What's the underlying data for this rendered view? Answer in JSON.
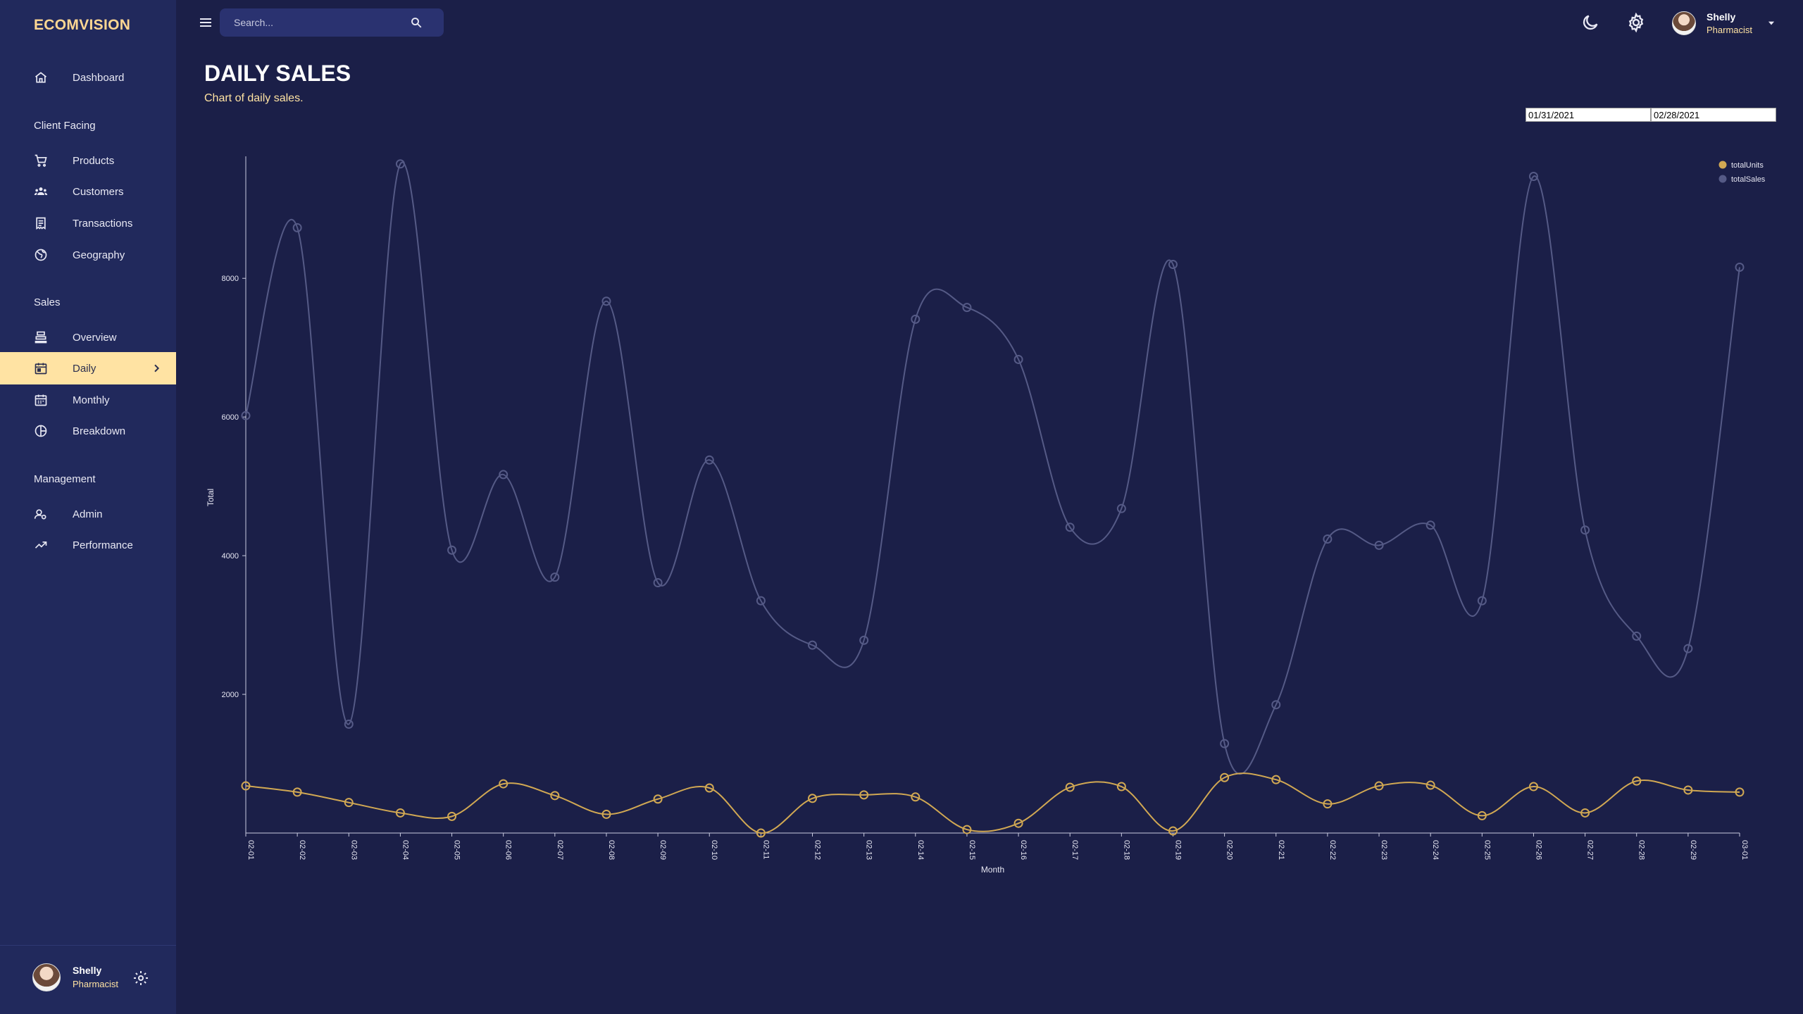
{
  "app": {
    "brand": "ECOMVISION"
  },
  "colors": {
    "background": "#1b1f48",
    "sidebar": "#21295c",
    "accent": "#ffe3a3",
    "sales_line": "#555a86",
    "units_line": "#d1a853"
  },
  "sidebar": {
    "dashboard": {
      "label": "Dashboard",
      "icon": "home-icon"
    },
    "section_client": "Client Facing",
    "products": {
      "label": "Products",
      "icon": "cart-icon"
    },
    "customers": {
      "label": "Customers",
      "icon": "groups-icon"
    },
    "transactions": {
      "label": "Transactions",
      "icon": "receipt-icon"
    },
    "geography": {
      "label": "Geography",
      "icon": "globe-icon"
    },
    "section_sales": "Sales",
    "overview": {
      "label": "Overview",
      "icon": "point-of-sale-icon"
    },
    "daily": {
      "label": "Daily",
      "icon": "calendar-today-icon"
    },
    "monthly": {
      "label": "Monthly",
      "icon": "calendar-month-icon"
    },
    "breakdown": {
      "label": "Breakdown",
      "icon": "pie-chart-icon"
    },
    "section_management": "Management",
    "admin": {
      "label": "Admin",
      "icon": "admin-icon"
    },
    "performance": {
      "label": "Performance",
      "icon": "trending-up-icon"
    },
    "user": {
      "name": "Shelly",
      "role": "Pharmacist"
    }
  },
  "topbar": {
    "search_placeholder": "Search...",
    "user": {
      "name": "Shelly",
      "role": "Pharmacist"
    }
  },
  "header": {
    "title": "DAILY SALES",
    "subtitle": "Chart of daily sales."
  },
  "date_range": {
    "start": "01/31/2021",
    "end": "02/28/2021"
  },
  "chart_data": {
    "type": "line",
    "xlabel": "Month",
    "ylabel": "Total",
    "ylim": [
      0,
      9800
    ],
    "yticks": [
      2000,
      4000,
      6000,
      8000
    ],
    "legend_position": "top-right",
    "categories": [
      "02-01",
      "02-02",
      "02-03",
      "02-04",
      "02-05",
      "02-06",
      "02-07",
      "02-08",
      "02-09",
      "02-10",
      "02-11",
      "02-12",
      "02-13",
      "02-14",
      "02-15",
      "02-16",
      "02-17",
      "02-18",
      "02-19",
      "02-20",
      "02-21",
      "02-22",
      "02-23",
      "02-24",
      "02-25",
      "02-26",
      "02-27",
      "02-28",
      "02-29",
      "03-01"
    ],
    "series": [
      {
        "name": "totalUnits",
        "color": "#d1a853",
        "values": [
          680,
          590,
          440,
          290,
          240,
          710,
          540,
          270,
          490,
          650,
          0,
          500,
          550,
          520,
          50,
          140,
          660,
          670,
          30,
          800,
          770,
          420,
          680,
          690,
          250,
          670,
          290,
          750,
          620,
          590
        ]
      },
      {
        "name": "totalSales",
        "color": "#555a86",
        "values": [
          6020,
          8730,
          1570,
          9650,
          4080,
          5170,
          3690,
          7670,
          3610,
          5380,
          3350,
          2710,
          2780,
          7410,
          7580,
          6830,
          4410,
          4680,
          8200,
          1290,
          1850,
          4240,
          4150,
          4440,
          3350,
          9470,
          4370,
          2840,
          2660,
          8160
        ]
      }
    ]
  }
}
